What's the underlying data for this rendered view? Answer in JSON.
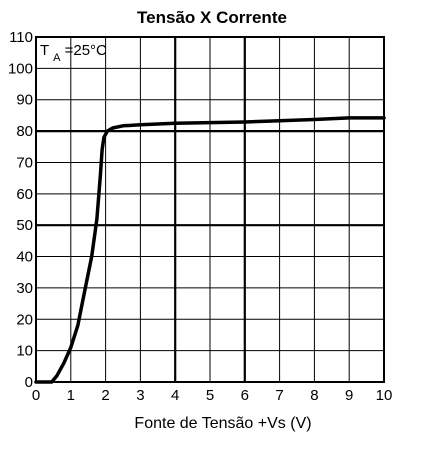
{
  "chart_data": {
    "type": "line",
    "title": "Tensão X Corrente",
    "xlabel": "Fonte de Tensão +Vs (V)",
    "ylabel": "",
    "xlim": [
      0,
      10
    ],
    "ylim": [
      0,
      110
    ],
    "x_ticks": [
      0,
      1,
      2,
      3,
      4,
      5,
      6,
      7,
      8,
      9,
      10
    ],
    "y_ticks": [
      0,
      10,
      20,
      30,
      40,
      50,
      60,
      70,
      80,
      90,
      100,
      110
    ],
    "bold_x_gridlines": [
      4,
      6
    ],
    "bold_y_gridlines": [
      50,
      80
    ],
    "grid": true,
    "annotation": {
      "symbol": "T",
      "subscript": "A",
      "text": "=25°C"
    },
    "series": [
      {
        "x": [
          0,
          0.45,
          0.6,
          0.8,
          1.0,
          1.2,
          1.4,
          1.6,
          1.75,
          1.85,
          1.9,
          1.95,
          2.05,
          2.2,
          2.5,
          3,
          4,
          5,
          6,
          7,
          8,
          9,
          10
        ],
        "y": [
          0,
          0,
          2,
          6,
          11,
          18,
          29,
          40,
          52,
          66,
          74,
          78,
          80,
          81,
          81.7,
          82,
          82.5,
          82.7,
          82.9,
          83.3,
          83.7,
          84.2,
          84.2
        ]
      }
    ]
  }
}
